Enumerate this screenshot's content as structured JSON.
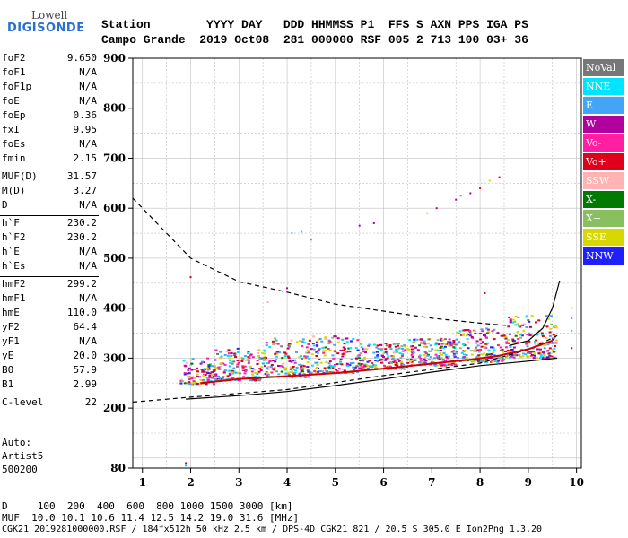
{
  "logo": {
    "top": "Lowell",
    "main": "DIGISONDE"
  },
  "header": {
    "row1": "Station        YYYY DAY   DDD HHMMSS P1  FFS S AXN PPS IGA PS",
    "row2": "Campo Grande  2019 Oct08  281 000000 RSF 005 2 713 100 03+ 36"
  },
  "params": [
    {
      "label": "foF2",
      "value": "9.650"
    },
    {
      "label": "foF1",
      "value": "N/A"
    },
    {
      "label": "foF1p",
      "value": "N/A"
    },
    {
      "label": "foE",
      "value": "N/A"
    },
    {
      "label": "foEp",
      "value": "0.36"
    },
    {
      "label": "fxI",
      "value": "9.95"
    },
    {
      "label": "foEs",
      "value": "N/A"
    },
    {
      "label": "fmin",
      "value": "2.15"
    },
    {
      "label": "MUF(D)",
      "value": "31.57"
    },
    {
      "label": "M(D)",
      "value": "3.27"
    },
    {
      "label": "D",
      "value": "N/A"
    },
    {
      "label": "h`F",
      "value": "230.2"
    },
    {
      "label": "h`F2",
      "value": "230.2"
    },
    {
      "label": "h`E",
      "value": "N/A"
    },
    {
      "label": "h`Es",
      "value": "N/A"
    },
    {
      "label": "hmF2",
      "value": "299.2"
    },
    {
      "label": "hmF1",
      "value": "N/A"
    },
    {
      "label": "hmE",
      "value": "110.0"
    },
    {
      "label": "yF2",
      "value": "64.4"
    },
    {
      "label": "yF1",
      "value": "N/A"
    },
    {
      "label": "yE",
      "value": "20.0"
    },
    {
      "label": "B0",
      "value": "57.9"
    },
    {
      "label": "B1",
      "value": "2.99"
    },
    {
      "label": "C-level",
      "value": "22"
    }
  ],
  "notes": {
    "auto": "Auto:",
    "artist": "Artist5",
    "ver": "500200"
  },
  "legend": [
    {
      "label": "NoVal",
      "color": "#777777"
    },
    {
      "label": "NNE",
      "color": "#00e5ff"
    },
    {
      "label": "E",
      "color": "#42a5f5"
    },
    {
      "label": "W",
      "color": "#b0009e"
    },
    {
      "label": "Vo-",
      "color": "#ff1fa0"
    },
    {
      "label": "Vo+",
      "color": "#e0001b"
    },
    {
      "label": "SSW",
      "color": "#ffb3b3"
    },
    {
      "label": "X-",
      "color": "#007a00"
    },
    {
      "label": "X+",
      "color": "#88c060"
    },
    {
      "label": "SSE",
      "color": "#d8d800"
    },
    {
      "label": "NNW",
      "color": "#2020ff"
    }
  ],
  "footer": {
    "d_row": "D     100  200  400  600  800 1000 1500 3000 [km]",
    "muf_row": "MUF  10.0 10.1 10.6 11.4 12.5 14.2 19.0 31.6 [MHz]",
    "file_row": "CGK21_2019281000000.RSF / 184fx512h 50 kHz 2.5 km / DPS-4D CGK21 821 / 20.5 S 305.0 E Ion2Png 1.3.20"
  },
  "chart_data": {
    "type": "scatter",
    "xlim": [
      0.8,
      10.1
    ],
    "ylim": [
      80,
      900
    ],
    "xticks": [
      "1",
      "2",
      "3",
      "4",
      "5",
      "6",
      "7",
      "8",
      "9",
      "10"
    ],
    "yticks": [
      "80",
      "200",
      "300",
      "400",
      "500",
      "600",
      "700",
      "800",
      "900"
    ],
    "grid": true,
    "traces": [
      {
        "name": "trace-solid-lower",
        "style": "solid",
        "color": "#000000",
        "points": [
          [
            1.9,
            218
          ],
          [
            3,
            225
          ],
          [
            4,
            233
          ],
          [
            5,
            245
          ],
          [
            6,
            258
          ],
          [
            7,
            272
          ],
          [
            8,
            285
          ],
          [
            8.8,
            292
          ],
          [
            9.3,
            297
          ],
          [
            9.6,
            300
          ]
        ]
      },
      {
        "name": "trace-solid-upper",
        "style": "solid",
        "color": "#000000",
        "points": [
          [
            8.6,
            325
          ],
          [
            9,
            335
          ],
          [
            9.3,
            360
          ],
          [
            9.5,
            400
          ],
          [
            9.65,
            455
          ]
        ]
      },
      {
        "name": "trace-dashed-muf",
        "style": "dashed",
        "color": "#000000",
        "points": [
          [
            0.8,
            212
          ],
          [
            2,
            222
          ],
          [
            4,
            237
          ],
          [
            6,
            265
          ],
          [
            8,
            290
          ],
          [
            9,
            317
          ],
          [
            9.6,
            345
          ]
        ]
      },
      {
        "name": "trace-dashed-top",
        "style": "dashed",
        "color": "#000000",
        "points": [
          [
            0.8,
            620
          ],
          [
            2,
            500
          ],
          [
            3,
            453
          ],
          [
            4,
            432
          ],
          [
            5,
            408
          ],
          [
            6,
            394
          ],
          [
            7,
            380
          ],
          [
            8,
            370
          ],
          [
            8.6,
            365
          ]
        ]
      },
      {
        "name": "trace-red-profile",
        "style": "solid",
        "color": "#d00000",
        "points": [
          [
            2.2,
            250
          ],
          [
            3,
            258
          ],
          [
            4,
            264
          ],
          [
            5,
            270
          ],
          [
            6,
            279
          ],
          [
            7,
            289
          ],
          [
            7.8,
            297
          ],
          [
            8.4,
            305
          ],
          [
            9,
            318
          ],
          [
            9.5,
            335
          ]
        ]
      }
    ],
    "scatter_bands": [
      {
        "x0": 1.8,
        "x1": 2.5,
        "ymin": 248,
        "ymax": 300
      },
      {
        "x0": 2.5,
        "x1": 3.5,
        "ymin": 255,
        "ymax": 320
      },
      {
        "x0": 3.5,
        "x1": 4.5,
        "ymin": 262,
        "ymax": 340
      },
      {
        "x0": 4.5,
        "x1": 5.5,
        "ymin": 270,
        "ymax": 345
      },
      {
        "x0": 5.5,
        "x1": 6.5,
        "ymin": 278,
        "ymax": 330
      },
      {
        "x0": 6.5,
        "x1": 7.5,
        "ymin": 285,
        "ymax": 340
      },
      {
        "x0": 7.5,
        "x1": 8.5,
        "ymin": 292,
        "ymax": 360
      },
      {
        "x0": 8.5,
        "x1": 9.6,
        "ymin": 300,
        "ymax": 385
      }
    ],
    "sparse_points": [
      [
        1.9,
        90
      ],
      [
        1.9,
        85
      ],
      [
        2.0,
        462
      ],
      [
        4.1,
        550
      ],
      [
        4.3,
        553
      ],
      [
        4.5,
        537
      ],
      [
        5.5,
        565
      ],
      [
        5.8,
        570
      ],
      [
        6.9,
        590
      ],
      [
        7.1,
        600
      ],
      [
        7.5,
        617
      ],
      [
        7.6,
        625
      ],
      [
        7.8,
        630
      ],
      [
        8.0,
        640
      ],
      [
        8.2,
        655
      ],
      [
        8.4,
        662
      ],
      [
        4.0,
        440
      ],
      [
        3.6,
        412
      ],
      [
        8.1,
        430
      ],
      [
        9.9,
        400
      ],
      [
        9.9,
        380
      ],
      [
        9.9,
        355
      ],
      [
        9.9,
        320
      ]
    ]
  }
}
